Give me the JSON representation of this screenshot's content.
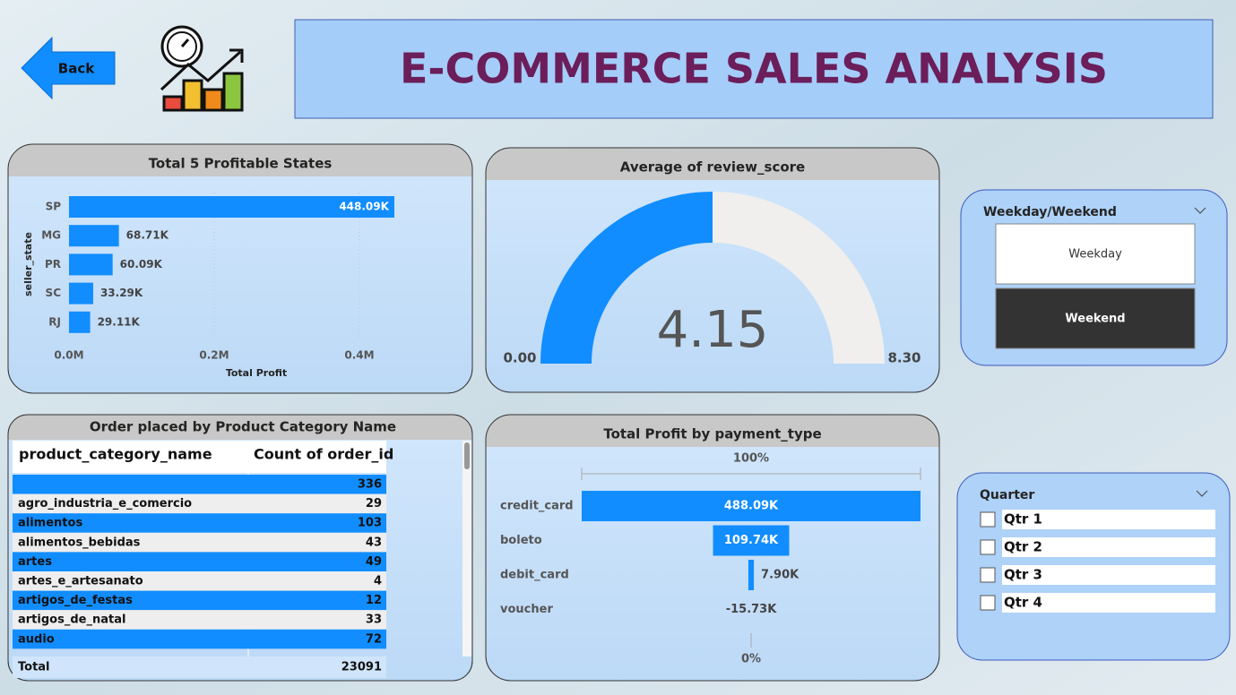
{
  "header": {
    "back": "Back",
    "title": "E-COMMERCE SALES ANALYSIS"
  },
  "chart_data": [
    {
      "type": "bar",
      "title": "Total 5 Profitable States",
      "y_label": "seller_state",
      "x_label": "Total Profit",
      "categories": [
        "SP",
        "MG",
        "PR",
        "SC",
        "RJ"
      ],
      "values": [
        448090,
        68710,
        60090,
        33290,
        29110
      ],
      "value_labels": [
        "448.09K",
        "68.71K",
        "60.09K",
        "33.29K",
        "29.11K"
      ],
      "color": "#118dff",
      "xlim": [
        0,
        500000
      ],
      "xticks": [
        {
          "value": 0,
          "label": "0.0M"
        },
        {
          "value": 200000,
          "label": "0.2M"
        },
        {
          "value": 400000,
          "label": "0.4M"
        }
      ],
      "grid": true
    },
    {
      "type": "gauge",
      "title": "Average of review_score",
      "value": 4.15,
      "min": {
        "value": 0,
        "label": "0.00"
      },
      "max": {
        "value": 8.3,
        "label": "8.30"
      },
      "color": "#118dff",
      "track_color": "#f0efee"
    },
    {
      "type": "funnel",
      "title": "Total Profit by payment_type",
      "categories": [
        "credit_card",
        "boleto",
        "debit_card",
        "voucher"
      ],
      "values": [
        488090,
        109740,
        7900,
        -15730
      ],
      "value_labels": [
        "488.09K",
        "109.74K",
        "7.90K",
        "-15.73K"
      ],
      "top_label": "100%",
      "bottom_label": "0%",
      "color": "#118dff"
    }
  ],
  "table": {
    "title": "Order placed by Product Category Name",
    "columns": [
      "product_category_name",
      "Count of order_id"
    ],
    "rows": [
      [
        null,
        336
      ],
      [
        "agro_industria_e_comercio",
        29
      ],
      [
        "alimentos",
        103
      ],
      [
        "alimentos_bebidas",
        43
      ],
      [
        "artes",
        49
      ],
      [
        "artes_e_artesanato",
        4
      ],
      [
        "artigos_de_festas",
        12
      ],
      [
        "artigos_de_natal",
        33
      ],
      [
        "audio",
        72
      ]
    ],
    "total": [
      "Total",
      23091
    ]
  },
  "slicers": [
    {
      "title": "Weekday/Weekend",
      "options": [
        "Weekday",
        "Weekend"
      ],
      "selected": [
        false,
        true
      ]
    },
    {
      "title": "Quarter",
      "options": [
        "Qtr 1",
        "Qtr 2",
        "Qtr 3",
        "Qtr 4"
      ],
      "selected": [
        false,
        false,
        false,
        false
      ]
    }
  ]
}
